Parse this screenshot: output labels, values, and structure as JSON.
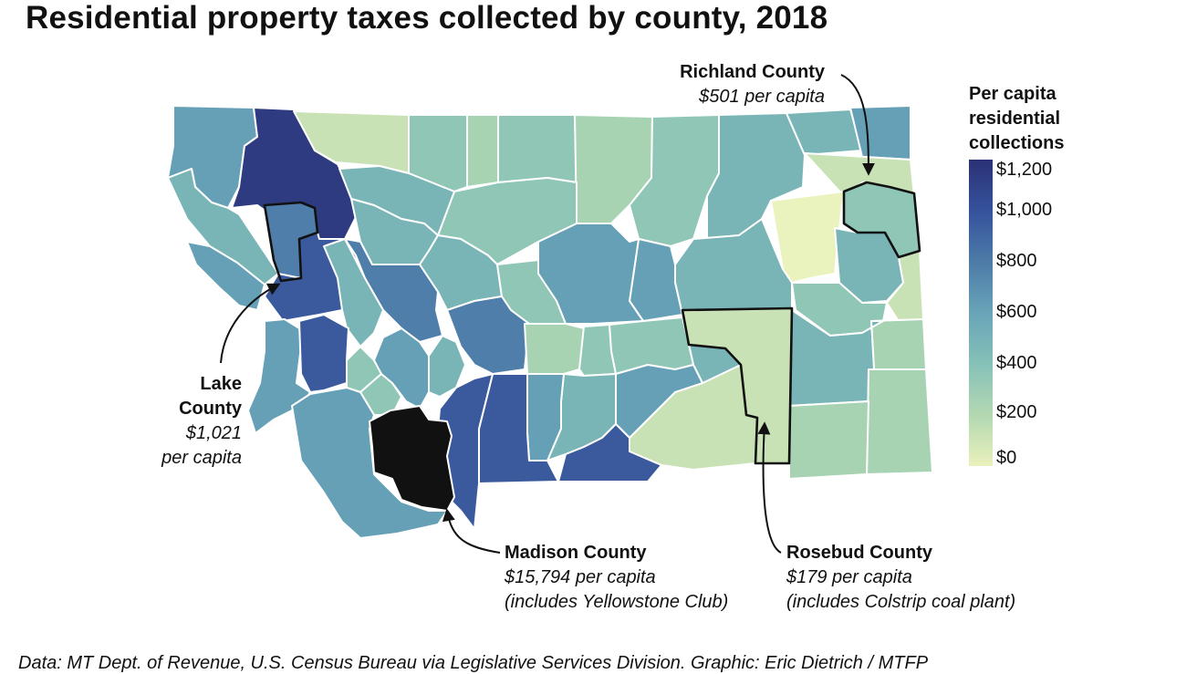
{
  "title": "Residential property taxes collected by county, 2018",
  "legend": {
    "title_lines": [
      "Per capita",
      "residential",
      "collections"
    ],
    "ticks": [
      "$1,200",
      "$1,000",
      "$800",
      "$600",
      "$400",
      "$200",
      "$0"
    ],
    "tick_values": [
      1200,
      1000,
      800,
      600,
      400,
      200,
      0
    ],
    "colors": [
      "#2b3175",
      "#35529c",
      "#4d7ba8",
      "#68a4b8",
      "#86c1b8",
      "#b3d8b2",
      "#e9f1bb"
    ]
  },
  "callouts": {
    "richland": {
      "name": "Richland County",
      "value": "$501 per capita",
      "amount": 501
    },
    "lake": {
      "name_lines": [
        "Lake",
        "County"
      ],
      "value_lines": [
        "$1,021",
        "per capita"
      ],
      "amount": 1021
    },
    "madison": {
      "name": "Madison County",
      "value": "$15,794 per capita",
      "note": "(includes Yellowstone Club)",
      "amount": 15794,
      "color": "#111111"
    },
    "rosebud": {
      "name": "Rosebud County",
      "value": "$179 per capita",
      "note": "(includes Colstrip coal plant)",
      "amount": 179
    }
  },
  "source": "Data: MT Dept. of Revenue, U.S. Census Bureau via Legislative Services Division. Graphic: Eric Dietrich / MTFP",
  "colors": {
    "c120": "#2e3b80",
    "c100": "#3b5a9d",
    "c080": "#4f7eab",
    "c060": "#65a0b6",
    "c050": "#79b5b6",
    "c040": "#8fc6b6",
    "c030": "#a8d3b3",
    "c020": "#c8e2b5",
    "c010": "#dbebb8",
    "c000": "#eaf2bd"
  }
}
